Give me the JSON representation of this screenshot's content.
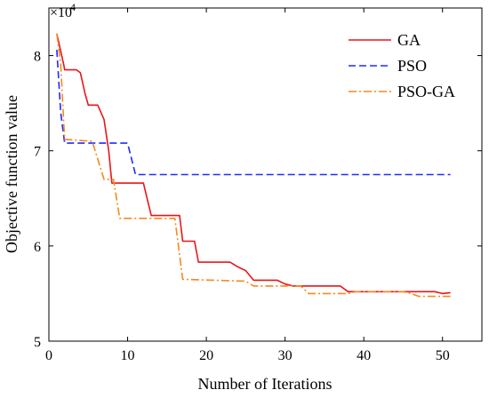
{
  "chart_data": {
    "type": "line",
    "xlabel": "Number of Iterations",
    "ylabel": "Objective function value",
    "y_multiplier": "×10",
    "y_exponent": "4",
    "xlim": [
      0,
      55
    ],
    "ylim": [
      5,
      8.5
    ],
    "xticks": [
      0,
      10,
      20,
      30,
      40,
      50
    ],
    "yticks": [
      5,
      6,
      7,
      8
    ],
    "grid": false,
    "legend_position": "top-right",
    "series": [
      {
        "name": "GA",
        "color": "#e8161b",
        "style": "solid",
        "x": [
          1,
          1.9,
          2,
          3.5,
          4,
          4.6,
          5,
          6.2,
          7,
          7.6,
          8,
          12,
          13,
          15,
          16,
          16.6,
          17,
          18.5,
          19,
          23,
          24,
          25,
          26,
          29,
          30,
          31,
          32,
          37,
          38,
          49,
          50,
          51
        ],
        "y": [
          8.23,
          7.9,
          7.85,
          7.85,
          7.82,
          7.6,
          7.48,
          7.48,
          7.33,
          7.0,
          6.66,
          6.66,
          6.32,
          6.32,
          6.32,
          6.32,
          6.05,
          6.05,
          5.83,
          5.83,
          5.78,
          5.74,
          5.64,
          5.64,
          5.6,
          5.58,
          5.58,
          5.58,
          5.52,
          5.52,
          5.5,
          5.51
        ]
      },
      {
        "name": "PSO",
        "color": "#1f2bff",
        "style": "dashed",
        "x": [
          1,
          1.5,
          2,
          10,
          11,
          51
        ],
        "y": [
          8.06,
          7.4,
          7.08,
          7.08,
          6.75,
          6.75
        ]
      },
      {
        "name": "PSO-GA",
        "color": "#f5891c",
        "style": "dashdot",
        "x": [
          1,
          1.5,
          2,
          5.5,
          7,
          8.2,
          9,
          16,
          17,
          25,
          26,
          32,
          33,
          38,
          39,
          44,
          45,
          46,
          47,
          51
        ],
        "y": [
          8.23,
          7.9,
          7.12,
          7.1,
          6.7,
          6.7,
          6.29,
          6.29,
          5.65,
          5.63,
          5.58,
          5.58,
          5.5,
          5.5,
          5.52,
          5.52,
          5.52,
          5.5,
          5.47,
          5.47
        ]
      }
    ]
  }
}
